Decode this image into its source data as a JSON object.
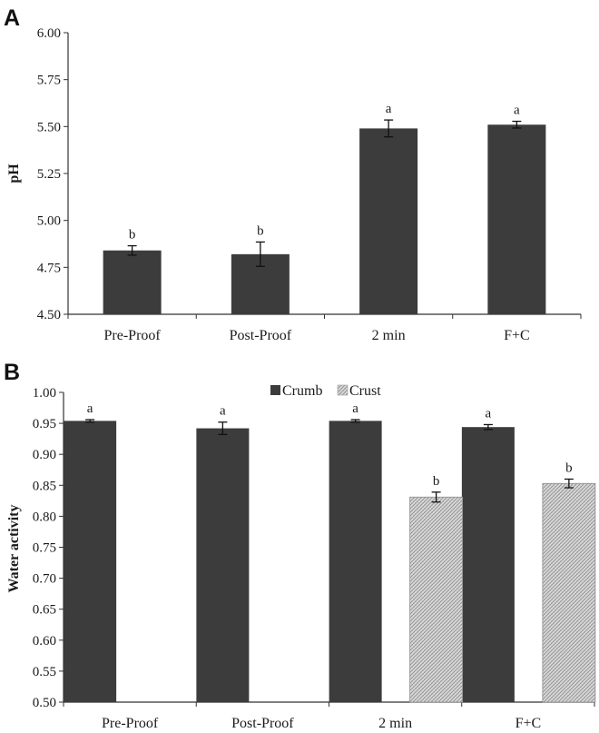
{
  "chart_data": [
    {
      "panel_label": "A",
      "type": "bar",
      "title": "",
      "xlabel": "",
      "ylabel": "pH",
      "ylim": [
        4.5,
        6.0
      ],
      "yticks": [
        "4.50",
        "4.75",
        "5.00",
        "5.25",
        "5.50",
        "5.75",
        "6.00"
      ],
      "grid": false,
      "categories": [
        "Pre-Proof",
        "Post-Proof",
        "2 min",
        "F+C"
      ],
      "series": [
        {
          "name": "pH",
          "color": "#3c3c3c",
          "values": [
            4.84,
            4.82,
            5.49,
            5.51
          ],
          "errors": [
            0.025,
            0.065,
            0.045,
            0.018
          ],
          "labels": [
            "b",
            "b",
            "a",
            "a"
          ]
        }
      ]
    },
    {
      "panel_label": "B",
      "type": "bar",
      "title": "",
      "xlabel": "",
      "ylabel": "Water activity",
      "ylim": [
        0.5,
        1.0
      ],
      "yticks": [
        "0.50",
        "0.55",
        "0.60",
        "0.65",
        "0.70",
        "0.75",
        "0.80",
        "0.85",
        "0.90",
        "0.95",
        "1.00"
      ],
      "grid": false,
      "legend": "top-center",
      "categories": [
        "Pre-Proof",
        "Post-Proof",
        "2 min",
        "F+C"
      ],
      "series": [
        {
          "name": "Crumb",
          "color": "#3c3c3c",
          "values": [
            0.954,
            0.942,
            0.954,
            0.944
          ],
          "errors": [
            0.002,
            0.01,
            0.002,
            0.004
          ],
          "labels": [
            "a",
            "a",
            "a",
            "a"
          ]
        },
        {
          "name": "Crust",
          "color": "#d2d2d2",
          "values": [
            null,
            null,
            0.831,
            0.853
          ],
          "errors": [
            null,
            null,
            0.008,
            0.007
          ],
          "labels": [
            "",
            "",
            "b",
            "b"
          ]
        }
      ]
    }
  ]
}
